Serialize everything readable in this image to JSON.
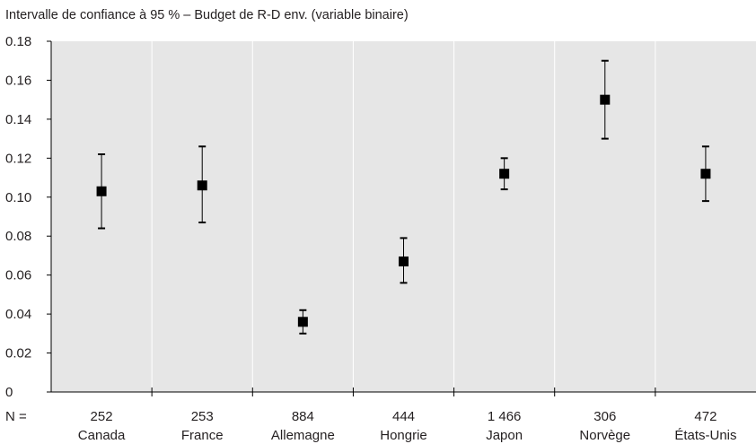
{
  "chart_data": {
    "type": "scatter",
    "title": "Intervalle de confiance à 95 % – Budget de R-D env. (variable binaire)",
    "xlabel": "",
    "ylabel": "",
    "n_prefix": "N =",
    "ylim": [
      0,
      0.18
    ],
    "yticks": [
      "0",
      "0.02",
      "0.04",
      "0.06",
      "0.08",
      "0.10",
      "0.12",
      "0.14",
      "0.16",
      "0.18"
    ],
    "ytick_values": [
      0,
      0.02,
      0.04,
      0.06,
      0.08,
      0.1,
      0.12,
      0.14,
      0.16,
      0.18
    ],
    "categories": [
      "Canada",
      "France",
      "Allemagne",
      "Hongrie",
      "Japon",
      "Norvège",
      "États-Unis"
    ],
    "n": [
      "252",
      "253",
      "884",
      "444",
      "1 466",
      "306",
      "472"
    ],
    "values": [
      0.103,
      0.106,
      0.036,
      0.067,
      0.112,
      0.15,
      0.112
    ],
    "lower": [
      0.084,
      0.087,
      0.03,
      0.056,
      0.104,
      0.13,
      0.098
    ],
    "upper": [
      0.122,
      0.126,
      0.042,
      0.079,
      0.12,
      0.17,
      0.126
    ],
    "grid": true,
    "colors": {
      "plot_bg": "#e6e6e6",
      "gridline": "#ffffff",
      "marker": "#000000",
      "axis": "#000000"
    }
  }
}
